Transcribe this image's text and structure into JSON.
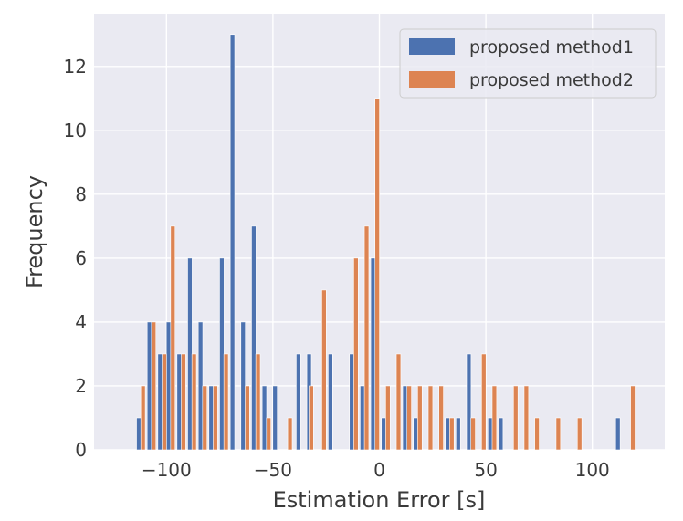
{
  "chart_data": {
    "type": "bar",
    "title": "",
    "xlabel": "Estimation Error [s]",
    "ylabel": "Frequency",
    "xlim": [
      -134,
      134
    ],
    "ylim": [
      0,
      13.65
    ],
    "xticks": [
      -100,
      -50,
      0,
      50,
      100
    ],
    "xtick_labels": [
      "−100",
      "−50",
      "0",
      "50",
      "100"
    ],
    "yticks": [
      0,
      2,
      4,
      6,
      8,
      10,
      12
    ],
    "ytick_labels": [
      "0",
      "2",
      "4",
      "6",
      "8",
      "10",
      "12"
    ],
    "grid": true,
    "legend_position": "top-right",
    "bar_width": 2.1,
    "series": [
      {
        "name": "proposed method1",
        "color": "#4c72b0",
        "points": [
          {
            "x": -113,
            "y": 1
          },
          {
            "x": -108,
            "y": 4
          },
          {
            "x": -103,
            "y": 3
          },
          {
            "x": -99,
            "y": 4
          },
          {
            "x": -94,
            "y": 3
          },
          {
            "x": -89,
            "y": 6
          },
          {
            "x": -84,
            "y": 4
          },
          {
            "x": -79,
            "y": 2
          },
          {
            "x": -74,
            "y": 6
          },
          {
            "x": -69,
            "y": 13
          },
          {
            "x": -64,
            "y": 4
          },
          {
            "x": -59,
            "y": 7
          },
          {
            "x": -54,
            "y": 2
          },
          {
            "x": -49,
            "y": 2
          },
          {
            "x": -38,
            "y": 3
          },
          {
            "x": -33,
            "y": 3
          },
          {
            "x": -23,
            "y": 3
          },
          {
            "x": -13,
            "y": 3
          },
          {
            "x": -8,
            "y": 2
          },
          {
            "x": -3,
            "y": 6
          },
          {
            "x": 2,
            "y": 1
          },
          {
            "x": 12,
            "y": 2
          },
          {
            "x": 17,
            "y": 1
          },
          {
            "x": 32,
            "y": 1
          },
          {
            "x": 37,
            "y": 1
          },
          {
            "x": 42,
            "y": 3
          },
          {
            "x": 52,
            "y": 1
          },
          {
            "x": 57,
            "y": 1
          },
          {
            "x": 112,
            "y": 1
          }
        ]
      },
      {
        "name": "proposed method2",
        "color": "#dd8452",
        "points": [
          {
            "x": -111,
            "y": 2
          },
          {
            "x": -106,
            "y": 4
          },
          {
            "x": -101,
            "y": 3
          },
          {
            "x": -97,
            "y": 7
          },
          {
            "x": -92,
            "y": 3
          },
          {
            "x": -87,
            "y": 3
          },
          {
            "x": -82,
            "y": 2
          },
          {
            "x": -77,
            "y": 2
          },
          {
            "x": -72,
            "y": 3
          },
          {
            "x": -62,
            "y": 2
          },
          {
            "x": -57,
            "y": 3
          },
          {
            "x": -52,
            "y": 1
          },
          {
            "x": -42,
            "y": 1
          },
          {
            "x": -32,
            "y": 2
          },
          {
            "x": -26,
            "y": 5
          },
          {
            "x": -11,
            "y": 6
          },
          {
            "x": -6,
            "y": 7
          },
          {
            "x": -1,
            "y": 11
          },
          {
            "x": 4,
            "y": 2
          },
          {
            "x": 9,
            "y": 3
          },
          {
            "x": 14,
            "y": 2
          },
          {
            "x": 19,
            "y": 2
          },
          {
            "x": 24,
            "y": 2
          },
          {
            "x": 29,
            "y": 2
          },
          {
            "x": 34,
            "y": 1
          },
          {
            "x": 44,
            "y": 1
          },
          {
            "x": 49,
            "y": 3
          },
          {
            "x": 54,
            "y": 2
          },
          {
            "x": 64,
            "y": 2
          },
          {
            "x": 69,
            "y": 2
          },
          {
            "x": 74,
            "y": 1
          },
          {
            "x": 84,
            "y": 1
          },
          {
            "x": 94,
            "y": 1
          },
          {
            "x": 119,
            "y": 2
          }
        ]
      }
    ]
  }
}
